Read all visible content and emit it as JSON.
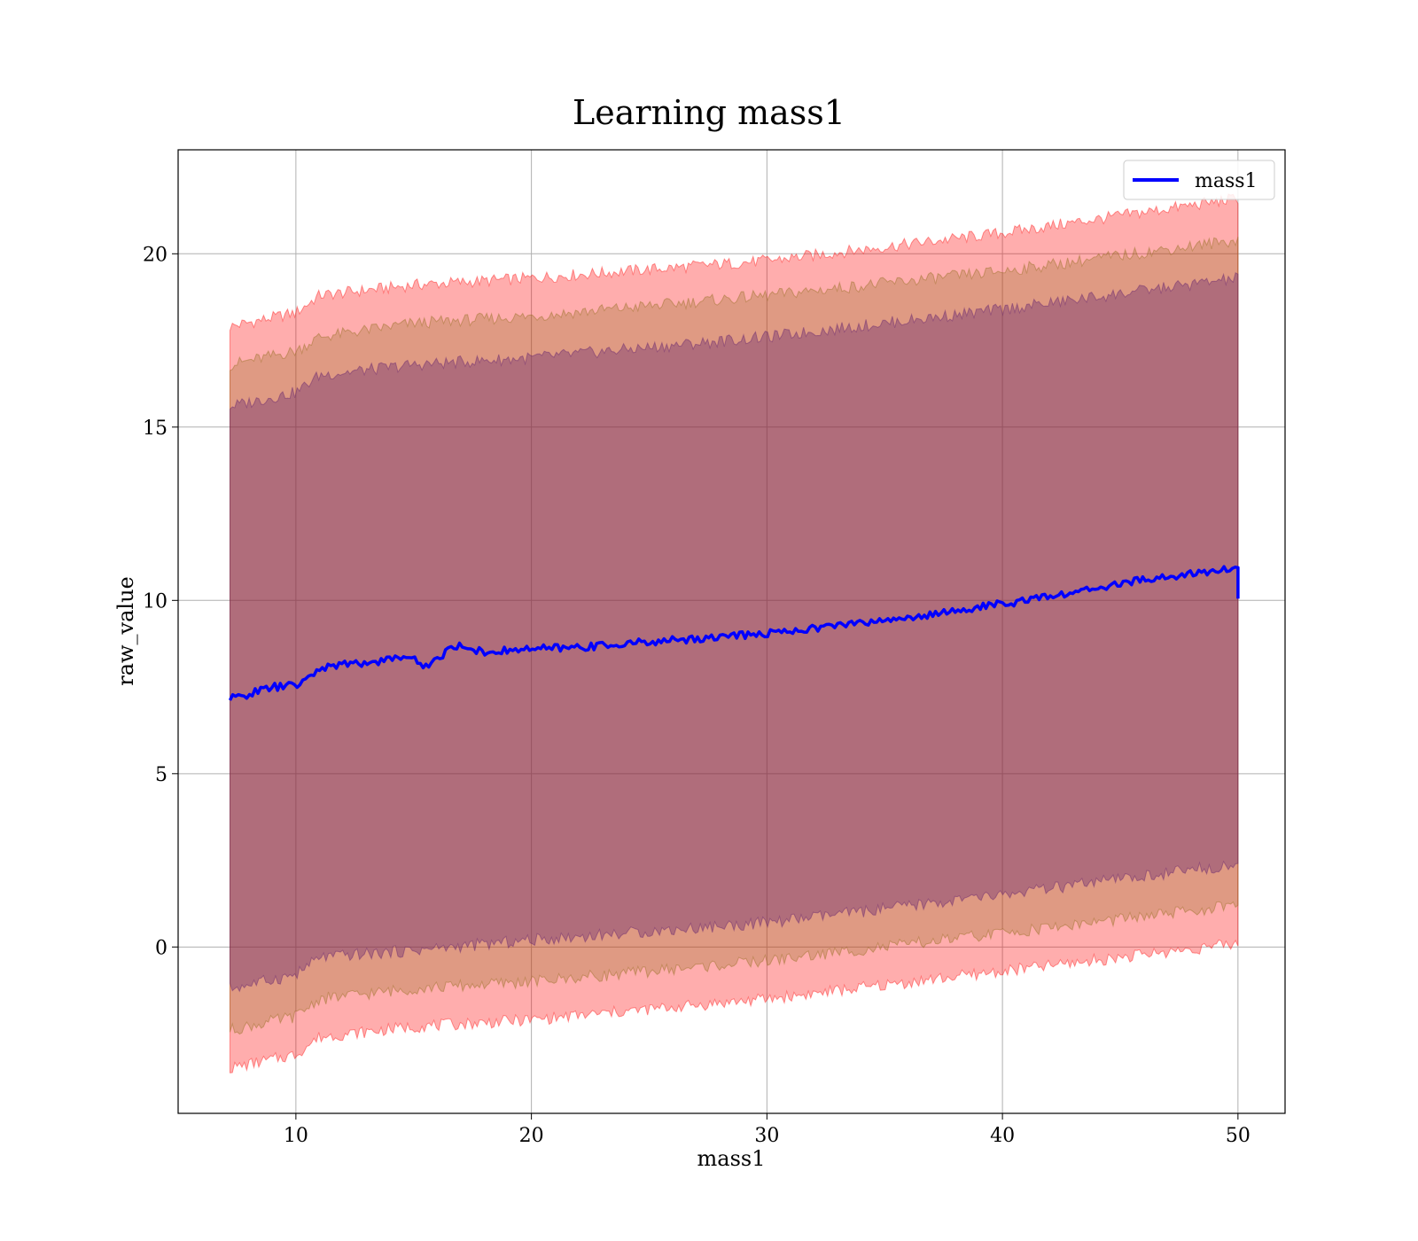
{
  "chart_data": {
    "type": "area",
    "title": "Learning mass1",
    "xlabel": "mass1",
    "ylabel": "raw_value",
    "xlim": [
      5.0,
      52.0
    ],
    "ylim": [
      -4.8,
      23.0
    ],
    "xticks": [
      10,
      20,
      30,
      40,
      50
    ],
    "yticks": [
      0,
      5,
      10,
      15,
      20
    ],
    "grid": true,
    "legend": {
      "placement": "top-right",
      "entries": [
        "mass1"
      ]
    },
    "x_range": [
      7.2,
      50.0
    ],
    "bands": [
      {
        "level": "outer",
        "color": "#ff0000",
        "opacity": 0.32,
        "lower": {
          "x": [
            7.2,
            10,
            11,
            15,
            20,
            30,
            40,
            50
          ],
          "y": [
            -3.5,
            -3.1,
            -2.6,
            -2.3,
            -2.1,
            -1.5,
            -0.7,
            0.1
          ]
        },
        "upper": {
          "x": [
            7.2,
            10,
            11,
            15,
            20,
            30,
            40,
            50
          ],
          "y": [
            17.9,
            18.3,
            18.8,
            19.1,
            19.3,
            19.8,
            20.6,
            21.6
          ]
        }
      },
      {
        "level": "middle",
        "color": "#8b6914",
        "opacity": 0.28,
        "lower": {
          "x": [
            7.2,
            10,
            11,
            15,
            20,
            30,
            40,
            50
          ],
          "y": [
            -2.4,
            -2.0,
            -1.5,
            -1.2,
            -1.0,
            -0.4,
            0.4,
            1.2
          ]
        },
        "upper": {
          "x": [
            7.2,
            10,
            11,
            15,
            20,
            30,
            40,
            50
          ],
          "y": [
            16.8,
            17.2,
            17.6,
            18.0,
            18.2,
            18.8,
            19.5,
            20.4
          ]
        }
      },
      {
        "level": "inner",
        "color": "#5a1a6e",
        "opacity": 0.35,
        "lower": {
          "x": [
            7.2,
            10,
            11,
            15,
            20,
            30,
            40,
            50
          ],
          "y": [
            -1.2,
            -0.8,
            -0.3,
            -0.1,
            0.2,
            0.7,
            1.5,
            2.4
          ]
        },
        "upper": {
          "x": [
            7.2,
            10,
            11,
            15,
            20,
            30,
            40,
            50
          ],
          "y": [
            15.6,
            16.0,
            16.5,
            16.8,
            17.0,
            17.6,
            18.4,
            19.3
          ]
        }
      }
    ],
    "series": [
      {
        "name": "mass1",
        "color": "#0000ff",
        "x": [
          7.2,
          8,
          9,
          10,
          10.5,
          11,
          12,
          13,
          14,
          14.5,
          15,
          15.5,
          16,
          16.5,
          17,
          18,
          19,
          20,
          22,
          24,
          26,
          28,
          30,
          32,
          34,
          36,
          38,
          40,
          42,
          44,
          46,
          48,
          50,
          50
        ],
        "y": [
          7.15,
          7.3,
          7.5,
          7.55,
          7.7,
          8.05,
          8.15,
          8.2,
          8.3,
          8.4,
          8.3,
          8.1,
          8.3,
          8.6,
          8.7,
          8.5,
          8.55,
          8.6,
          8.65,
          8.75,
          8.85,
          8.95,
          9.05,
          9.2,
          9.35,
          9.5,
          9.7,
          9.9,
          10.1,
          10.35,
          10.6,
          10.75,
          10.95,
          10.05
        ]
      }
    ]
  }
}
